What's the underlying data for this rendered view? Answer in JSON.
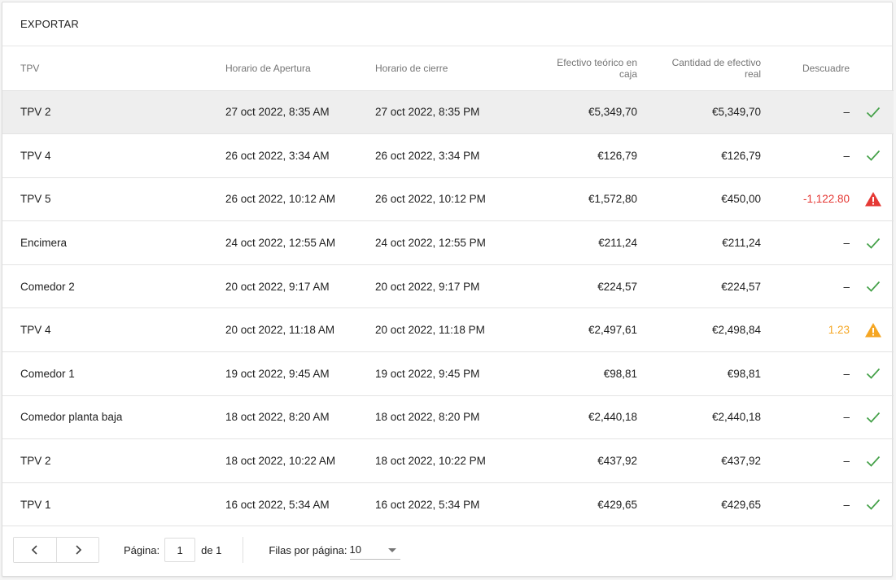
{
  "toolbar": {
    "export_label": "EXPORTAR"
  },
  "table": {
    "headers": {
      "tpv": "TPV",
      "apertura": "Horario de Apertura",
      "cierre": "Horario de cierre",
      "teorico_line1": "Efectivo teórico en",
      "teorico_line2": "caja",
      "real_line1": "Cantidad de efectivo",
      "real_line2": "real",
      "descuadre": "Descuadre"
    },
    "rows": [
      {
        "tpv": "TPV 2",
        "apertura": "27 oct 2022, 8:35 AM",
        "cierre": "27 oct 2022, 8:35 PM",
        "teorico": "€5,349,70",
        "real": "€5,349,70",
        "descuadre": "–",
        "status": "ok"
      },
      {
        "tpv": "TPV 4",
        "apertura": "26 oct 2022, 3:34 AM",
        "cierre": "26 oct 2022, 3:34 PM",
        "teorico": "€126,79",
        "real": "€126,79",
        "descuadre": "–",
        "status": "ok"
      },
      {
        "tpv": "TPV 5",
        "apertura": "26 oct 2022, 10:12 AM",
        "cierre": "26 oct 2022, 10:12 PM",
        "teorico": "€1,572,80",
        "real": "€450,00",
        "descuadre": "-1,122.80",
        "status": "error"
      },
      {
        "tpv": "Encimera",
        "apertura": "24 oct 2022, 12:55 AM",
        "cierre": "24 oct 2022, 12:55 PM",
        "teorico": "€211,24",
        "real": "€211,24",
        "descuadre": "–",
        "status": "ok"
      },
      {
        "tpv": "Comedor 2",
        "apertura": "20 oct 2022, 9:17 AM",
        "cierre": "20 oct 2022, 9:17 PM",
        "teorico": "€224,57",
        "real": "€224,57",
        "descuadre": "–",
        "status": "ok"
      },
      {
        "tpv": "TPV 4",
        "apertura": "20 oct 2022, 11:18 AM",
        "cierre": "20 oct 2022, 11:18 PM",
        "teorico": "€2,497,61",
        "real": "€2,498,84",
        "descuadre": "1.23",
        "status": "warning"
      },
      {
        "tpv": "Comedor 1",
        "apertura": "19 oct 2022, 9:45 AM",
        "cierre": "19 oct 2022, 9:45 PM",
        "teorico": "€98,81",
        "real": "€98,81",
        "descuadre": "–",
        "status": "ok"
      },
      {
        "tpv": "Comedor planta baja",
        "apertura": "18 oct 2022, 8:20 AM",
        "cierre": "18 oct 2022, 8:20 PM",
        "teorico": "€2,440,18",
        "real": "€2,440,18",
        "descuadre": "–",
        "status": "ok"
      },
      {
        "tpv": "TPV 2",
        "apertura": "18 oct 2022, 10:22 AM",
        "cierre": "18 oct 2022, 10:22 PM",
        "teorico": "€437,92",
        "real": "€437,92",
        "descuadre": "–",
        "status": "ok"
      },
      {
        "tpv": "TPV 1",
        "apertura": "16 oct 2022, 5:34 AM",
        "cierre": "16 oct 2022, 5:34 PM",
        "teorico": "€429,65",
        "real": "€429,65",
        "descuadre": "–",
        "status": "ok"
      }
    ]
  },
  "pagination": {
    "prev_icon": "chevron-left-icon",
    "next_icon": "chevron-right-icon",
    "page_label": "Página:",
    "current_page": "1",
    "of_label": "de 1",
    "rows_label": "Filas por página:",
    "rows_value": "10"
  },
  "colors": {
    "ok": "#43a047",
    "error": "#e53935",
    "warning": "#f5a623",
    "selected_row": "#eeeeee"
  }
}
